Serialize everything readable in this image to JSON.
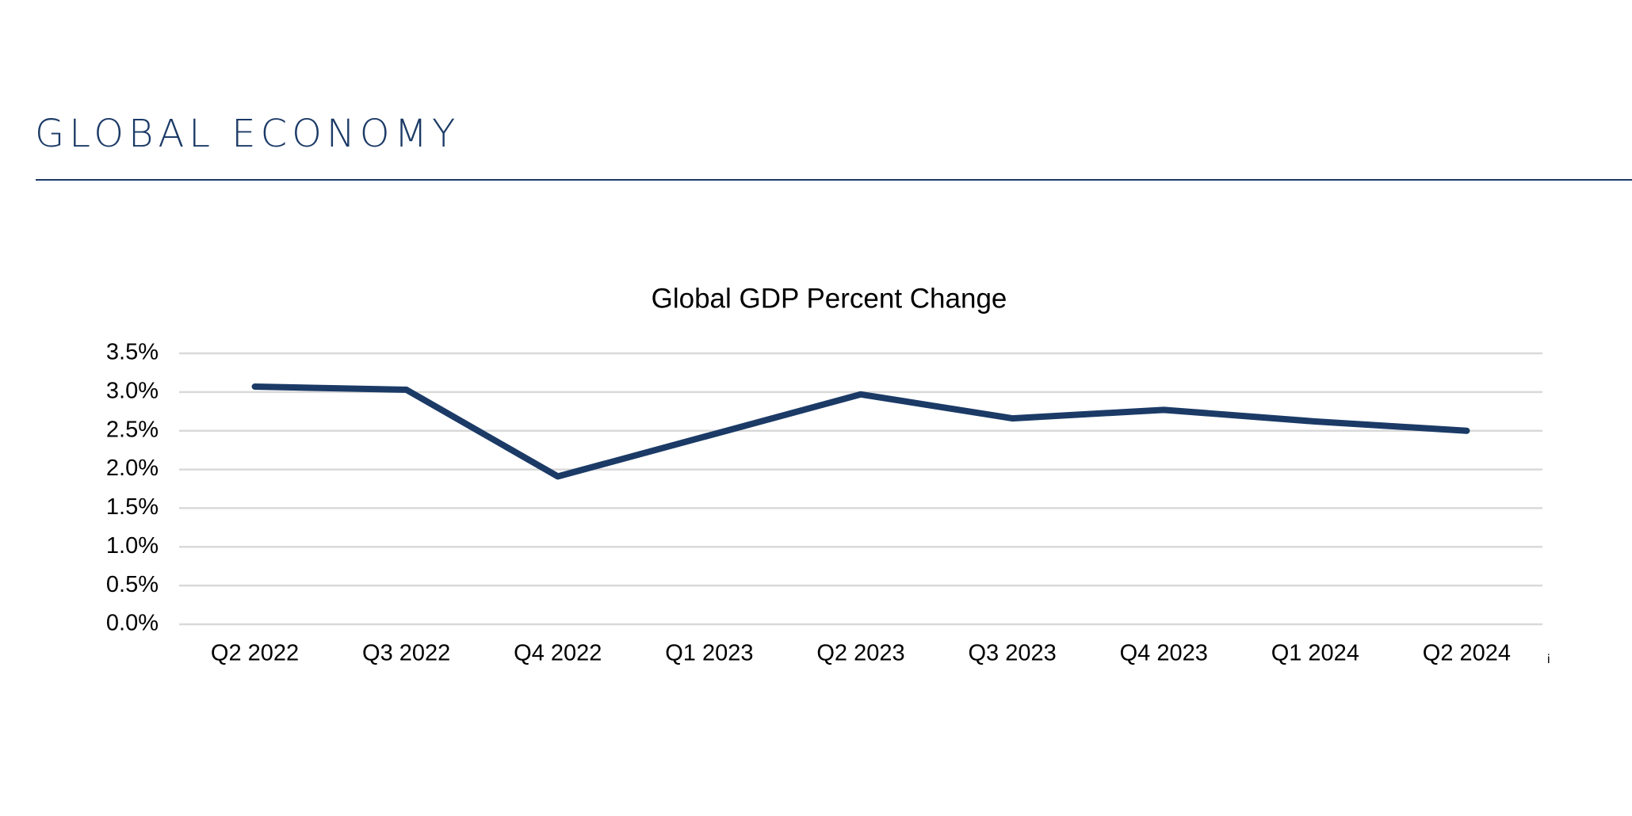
{
  "header": {
    "title": "GLOBAL ECONOMY"
  },
  "chart_data": {
    "type": "line",
    "title": "Global GDP Percent Change",
    "categories": [
      "Q2 2022",
      "Q3 2022",
      "Q4 2022",
      "Q1 2023",
      "Q2 2023",
      "Q3 2023",
      "Q4 2023",
      "Q1 2024",
      "Q2 2024"
    ],
    "values": [
      3.07,
      3.03,
      1.91,
      2.44,
      2.97,
      2.66,
      2.77,
      2.62,
      2.5
    ],
    "color": "#1b3a66",
    "ylim": [
      0,
      3.5
    ],
    "yticks": [
      {
        "value": 0,
        "label": "0.0%"
      },
      {
        "value": 0.5,
        "label": "0.5%"
      },
      {
        "value": 1,
        "label": "1.0%"
      },
      {
        "value": 1.5,
        "label": "1.5%"
      },
      {
        "value": 2,
        "label": "2.0%"
      },
      {
        "value": 2.5,
        "label": "2.5%"
      },
      {
        "value": 3,
        "label": "3.0%"
      },
      {
        "value": 3.5,
        "label": "3.5%"
      }
    ],
    "grid": true,
    "annotation": "i"
  }
}
